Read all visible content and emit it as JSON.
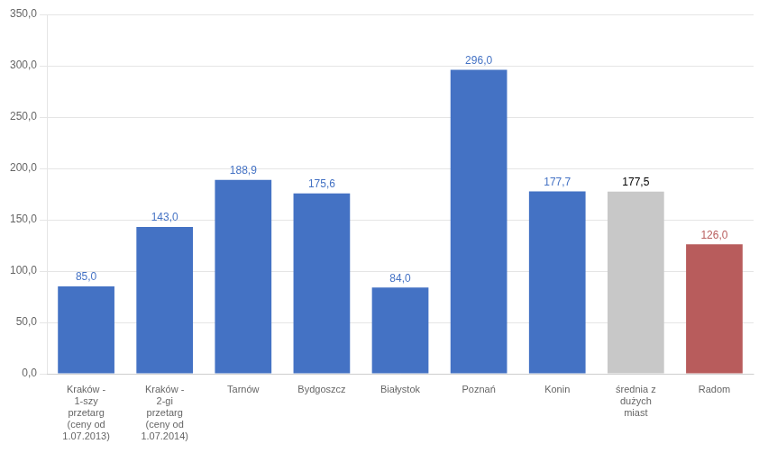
{
  "chart_data": {
    "type": "bar",
    "categories": [
      "Kraków -\n1-szy\nprzetarg\n(ceny od\n1.07.2013)",
      "Kraków -\n2-gi\nprzetarg\n(ceny od\n1.07.2014)",
      "Tarnów",
      "Bydgoszcz",
      "Białystok",
      "Poznań",
      "Konin",
      "średnia z\ndużych\nmiast",
      "Radom"
    ],
    "values": [
      85.0,
      143.0,
      188.9,
      175.6,
      84.0,
      296.0,
      177.7,
      177.5,
      126.0
    ],
    "value_labels": [
      "85,0",
      "143,0",
      "188,9",
      "175,6",
      "84,0",
      "296,0",
      "177,7",
      "177,5",
      "126,0"
    ],
    "data_labels": true,
    "colors": [
      "#4472C4",
      "#4472C4",
      "#4472C4",
      "#4472C4",
      "#4472C4",
      "#4472C4",
      "#4472C4",
      "#C8C8C8",
      "#B85C5C"
    ],
    "ylim": [
      0,
      350
    ],
    "yticks": [
      {
        "value": 0,
        "label": "0,0"
      },
      {
        "value": 50,
        "label": "50,0"
      },
      {
        "value": 100,
        "label": "100,0"
      },
      {
        "value": 150,
        "label": "150,0"
      },
      {
        "value": 200,
        "label": "200,0"
      },
      {
        "value": 250,
        "label": "250,0"
      },
      {
        "value": 300,
        "label": "300,0"
      },
      {
        "value": 350,
        "label": "350,0"
      }
    ],
    "grid": true
  }
}
